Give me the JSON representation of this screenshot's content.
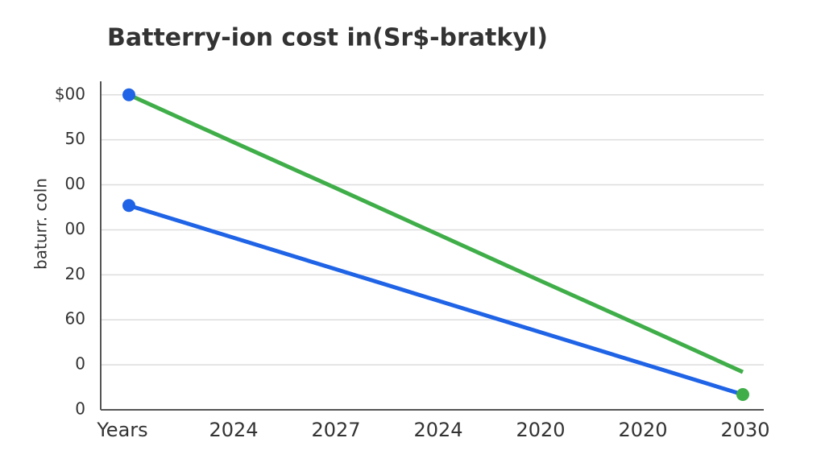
{
  "chart_data": {
    "type": "line",
    "title": "Batterry-ion cost in(Sr$-bratkyl)",
    "y_label": "baturr. coln",
    "categories": [
      "Years",
      "2024",
      "2027",
      "2024",
      "2020",
      "2020",
      "2030"
    ],
    "series": [
      {
        "color": "#3fae49",
        "values": [
          7,
          5.97,
          4.95,
          3.92,
          2.89,
          1.87,
          0.84
        ]
      },
      {
        "color": "#1f63e6",
        "values": [
          4.54,
          3.84,
          3.14,
          2.44,
          1.74,
          1.04,
          0.34
        ]
      }
    ],
    "markers": [
      {
        "series": 0,
        "index": 0,
        "color": "#1f63e6"
      },
      {
        "series": 1,
        "index": 0,
        "color": "#1f63e6"
      },
      {
        "series": 1,
        "index": 6,
        "color": "#3fae49"
      }
    ],
    "ylim": [
      0,
      7.3
    ],
    "yticks": [
      0,
      {
        "value": 1,
        "label": "0"
      },
      {
        "value": 2,
        "label": "60"
      },
      {
        "value": 3,
        "label": "20"
      },
      {
        "value": 4,
        "label": "00"
      },
      {
        "value": 5,
        "label": "00"
      },
      {
        "value": 6,
        "label": "50"
      },
      {
        "value": 7,
        "label": "$00"
      }
    ],
    "grid": true
  }
}
